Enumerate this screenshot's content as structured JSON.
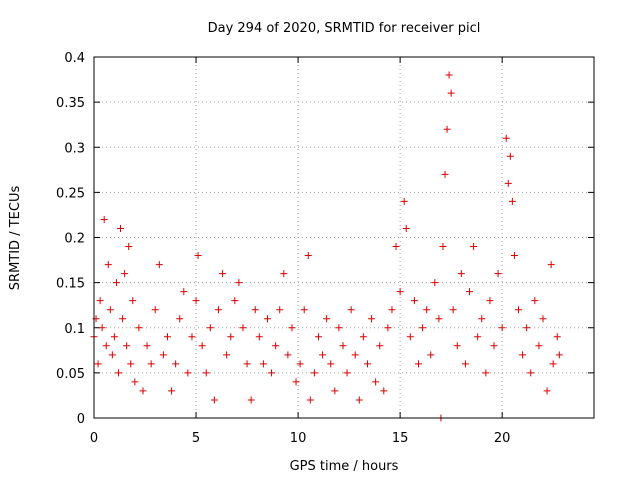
{
  "chart_data": {
    "type": "scatter",
    "title": "Day 294 of 2020, SRMTID for receiver picl",
    "xlabel": "GPS time / hours",
    "ylabel": "SRMTID / TECUs",
    "xlim": [
      0,
      24.5
    ],
    "ylim": [
      0,
      0.4
    ],
    "xticks": [
      0,
      5,
      10,
      15,
      20
    ],
    "xtick_labels": [
      "0",
      "5",
      "10",
      "15",
      "20"
    ],
    "yticks": [
      0,
      0.05,
      0.1,
      0.15,
      0.2,
      0.25,
      0.3,
      0.35,
      0.4
    ],
    "ytick_labels": [
      "0",
      "0.05",
      "0.1",
      "0.15",
      "0.2",
      "0.25",
      "0.3",
      "0.35",
      "0.4"
    ],
    "grid": true,
    "marker": "+",
    "color": "#e00000",
    "series": [
      {
        "name": "SRMTID",
        "points": [
          [
            0.0,
            0.09
          ],
          [
            0.1,
            0.11
          ],
          [
            0.2,
            0.06
          ],
          [
            0.3,
            0.13
          ],
          [
            0.4,
            0.1
          ],
          [
            0.5,
            0.22
          ],
          [
            0.6,
            0.08
          ],
          [
            0.7,
            0.17
          ],
          [
            0.8,
            0.12
          ],
          [
            0.9,
            0.07
          ],
          [
            1.0,
            0.09
          ],
          [
            1.1,
            0.15
          ],
          [
            1.2,
            0.05
          ],
          [
            1.3,
            0.21
          ],
          [
            1.4,
            0.11
          ],
          [
            1.5,
            0.16
          ],
          [
            1.6,
            0.08
          ],
          [
            1.7,
            0.19
          ],
          [
            1.8,
            0.06
          ],
          [
            1.9,
            0.13
          ],
          [
            2.0,
            0.04
          ],
          [
            2.2,
            0.1
          ],
          [
            2.4,
            0.03
          ],
          [
            2.6,
            0.08
          ],
          [
            2.8,
            0.06
          ],
          [
            3.0,
            0.12
          ],
          [
            3.2,
            0.17
          ],
          [
            3.4,
            0.07
          ],
          [
            3.6,
            0.09
          ],
          [
            3.8,
            0.03
          ],
          [
            4.0,
            0.06
          ],
          [
            4.2,
            0.11
          ],
          [
            4.4,
            0.14
          ],
          [
            4.6,
            0.05
          ],
          [
            4.8,
            0.09
          ],
          [
            5.0,
            0.13
          ],
          [
            5.1,
            0.18
          ],
          [
            5.3,
            0.08
          ],
          [
            5.5,
            0.05
          ],
          [
            5.7,
            0.1
          ],
          [
            5.9,
            0.02
          ],
          [
            6.1,
            0.12
          ],
          [
            6.3,
            0.16
          ],
          [
            6.5,
            0.07
          ],
          [
            6.7,
            0.09
          ],
          [
            6.9,
            0.13
          ],
          [
            7.1,
            0.15
          ],
          [
            7.3,
            0.1
          ],
          [
            7.5,
            0.06
          ],
          [
            7.7,
            0.02
          ],
          [
            7.9,
            0.12
          ],
          [
            8.1,
            0.09
          ],
          [
            8.3,
            0.06
          ],
          [
            8.5,
            0.11
          ],
          [
            8.7,
            0.05
          ],
          [
            8.9,
            0.08
          ],
          [
            9.1,
            0.12
          ],
          [
            9.3,
            0.16
          ],
          [
            9.5,
            0.07
          ],
          [
            9.7,
            0.1
          ],
          [
            9.9,
            0.04
          ],
          [
            10.1,
            0.06
          ],
          [
            10.3,
            0.12
          ],
          [
            10.5,
            0.18
          ],
          [
            10.6,
            0.02
          ],
          [
            10.8,
            0.05
          ],
          [
            11.0,
            0.09
          ],
          [
            11.2,
            0.07
          ],
          [
            11.4,
            0.11
          ],
          [
            11.6,
            0.06
          ],
          [
            11.8,
            0.03
          ],
          [
            12.0,
            0.1
          ],
          [
            12.2,
            0.08
          ],
          [
            12.4,
            0.05
          ],
          [
            12.6,
            0.12
          ],
          [
            12.8,
            0.07
          ],
          [
            13.0,
            0.02
          ],
          [
            13.2,
            0.09
          ],
          [
            13.4,
            0.06
          ],
          [
            13.6,
            0.11
          ],
          [
            13.8,
            0.04
          ],
          [
            14.0,
            0.08
          ],
          [
            14.2,
            0.03
          ],
          [
            14.4,
            0.1
          ],
          [
            14.6,
            0.12
          ],
          [
            14.8,
            0.19
          ],
          [
            15.0,
            0.14
          ],
          [
            15.2,
            0.24
          ],
          [
            15.3,
            0.21
          ],
          [
            15.5,
            0.09
          ],
          [
            15.7,
            0.13
          ],
          [
            15.9,
            0.06
          ],
          [
            16.1,
            0.1
          ],
          [
            16.3,
            0.12
          ],
          [
            16.5,
            0.07
          ],
          [
            16.7,
            0.15
          ],
          [
            16.9,
            0.11
          ],
          [
            17.0,
            0.0
          ],
          [
            17.1,
            0.19
          ],
          [
            17.2,
            0.27
          ],
          [
            17.3,
            0.32
          ],
          [
            17.4,
            0.38
          ],
          [
            17.5,
            0.36
          ],
          [
            17.6,
            0.12
          ],
          [
            17.8,
            0.08
          ],
          [
            18.0,
            0.16
          ],
          [
            18.2,
            0.06
          ],
          [
            18.4,
            0.14
          ],
          [
            18.6,
            0.19
          ],
          [
            18.8,
            0.09
          ],
          [
            19.0,
            0.11
          ],
          [
            19.2,
            0.05
          ],
          [
            19.4,
            0.13
          ],
          [
            19.6,
            0.08
          ],
          [
            19.8,
            0.16
          ],
          [
            20.0,
            0.1
          ],
          [
            20.2,
            0.31
          ],
          [
            20.3,
            0.26
          ],
          [
            20.4,
            0.29
          ],
          [
            20.5,
            0.24
          ],
          [
            20.6,
            0.18
          ],
          [
            20.8,
            0.12
          ],
          [
            21.0,
            0.07
          ],
          [
            21.2,
            0.1
          ],
          [
            21.4,
            0.05
          ],
          [
            21.6,
            0.13
          ],
          [
            21.8,
            0.08
          ],
          [
            22.0,
            0.11
          ],
          [
            22.2,
            0.03
          ],
          [
            22.4,
            0.17
          ],
          [
            22.5,
            0.06
          ],
          [
            22.7,
            0.09
          ],
          [
            22.8,
            0.07
          ]
        ]
      }
    ]
  }
}
